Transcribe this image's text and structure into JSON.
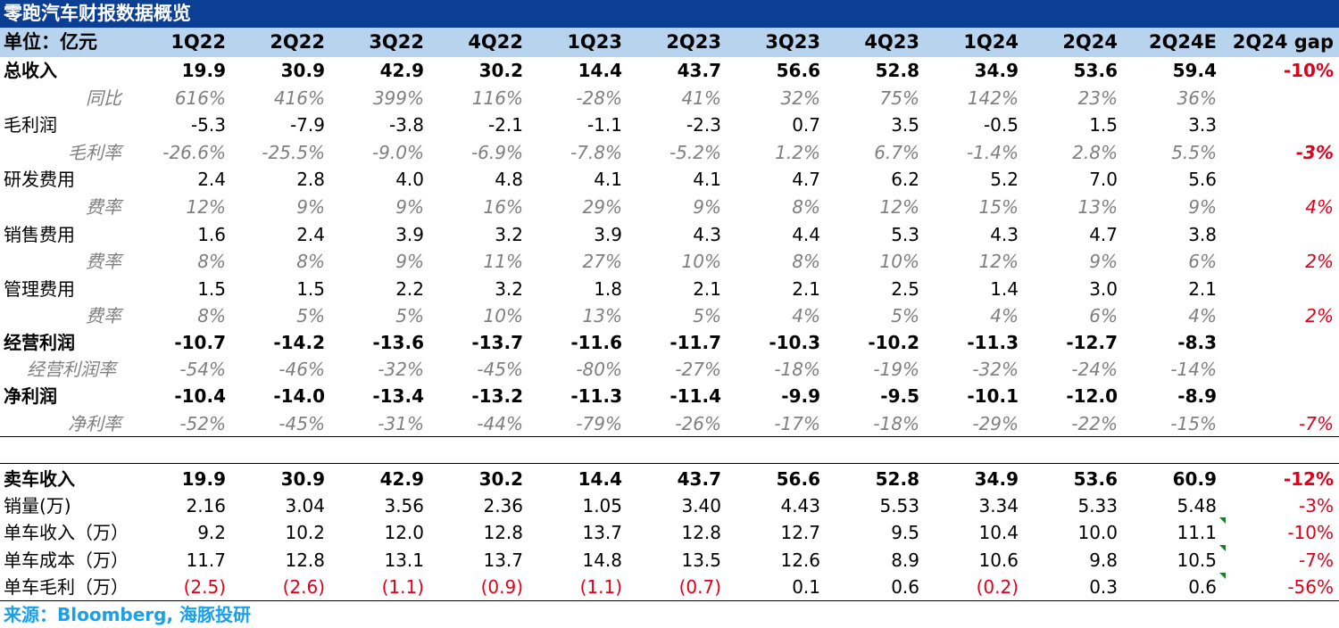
{
  "title": "零跑汽车财报数据概览",
  "header": {
    "unit": "单位：亿元",
    "columns": [
      "1Q22",
      "2Q22",
      "3Q22",
      "4Q22",
      "1Q23",
      "2Q23",
      "3Q23",
      "4Q23",
      "1Q24",
      "2Q24",
      "2Q24E",
      "2Q24 gap"
    ]
  },
  "rows": [
    {
      "label": "总收入",
      "values": [
        "19.9",
        "30.9",
        "42.9",
        "30.2",
        "14.4",
        "43.7",
        "56.6",
        "52.8",
        "34.9",
        "53.6",
        "59.4"
      ],
      "gap": "-10%"
    },
    {
      "label": "同比",
      "values": [
        "616%",
        "416%",
        "399%",
        "116%",
        "-28%",
        "41%",
        "32%",
        "75%",
        "142%",
        "23%",
        "36%"
      ],
      "gap": ""
    },
    {
      "label": "毛利润",
      "values": [
        "-5.3",
        "-7.9",
        "-3.8",
        "-2.1",
        "-1.1",
        "-2.3",
        "0.7",
        "3.5",
        "-0.5",
        "1.5",
        "3.3"
      ],
      "gap": ""
    },
    {
      "label": "毛利率",
      "values": [
        "-26.6%",
        "-25.5%",
        "-9.0%",
        "-6.9%",
        "-7.8%",
        "-5.2%",
        "1.2%",
        "6.7%",
        "-1.4%",
        "2.8%",
        "5.5%"
      ],
      "gap": "-3%"
    },
    {
      "label": "研发费用",
      "values": [
        "2.4",
        "2.8",
        "4.0",
        "4.8",
        "4.1",
        "4.1",
        "4.7",
        "6.2",
        "5.2",
        "7.0",
        "5.6"
      ],
      "gap": ""
    },
    {
      "label": "费率",
      "values": [
        "12%",
        "9%",
        "9%",
        "16%",
        "29%",
        "9%",
        "8%",
        "12%",
        "15%",
        "13%",
        "9%"
      ],
      "gap": "4%"
    },
    {
      "label": "销售费用",
      "values": [
        "1.6",
        "2.4",
        "3.9",
        "3.2",
        "3.9",
        "4.3",
        "4.4",
        "5.3",
        "4.3",
        "4.7",
        "3.8"
      ],
      "gap": ""
    },
    {
      "label": "费率",
      "values": [
        "8%",
        "8%",
        "9%",
        "11%",
        "27%",
        "10%",
        "8%",
        "10%",
        "12%",
        "9%",
        "6%"
      ],
      "gap": "2%"
    },
    {
      "label": "管理费用",
      "values": [
        "1.5",
        "1.5",
        "2.2",
        "3.2",
        "1.8",
        "2.1",
        "2.1",
        "2.5",
        "1.4",
        "3.0",
        "2.1"
      ],
      "gap": ""
    },
    {
      "label": "费率",
      "values": [
        "8%",
        "5%",
        "5%",
        "10%",
        "13%",
        "5%",
        "4%",
        "5%",
        "4%",
        "6%",
        "4%"
      ],
      "gap": "2%"
    },
    {
      "label": "经营利润",
      "values": [
        "-10.7",
        "-14.2",
        "-13.6",
        "-13.7",
        "-11.6",
        "-11.7",
        "-10.3",
        "-10.2",
        "-11.3",
        "-12.7",
        "-8.3"
      ],
      "gap": ""
    },
    {
      "label": "经营利润率",
      "values": [
        "-54%",
        "-46%",
        "-32%",
        "-45%",
        "-80%",
        "-27%",
        "-18%",
        "-19%",
        "-32%",
        "-24%",
        "-14%"
      ],
      "gap": ""
    },
    {
      "label": "净利润",
      "values": [
        "-10.4",
        "-14.0",
        "-13.4",
        "-13.2",
        "-11.3",
        "-11.4",
        "-9.9",
        "-9.5",
        "-10.1",
        "-12.0",
        "-8.9"
      ],
      "gap": ""
    },
    {
      "label": "净利率",
      "values": [
        "-52%",
        "-45%",
        "-31%",
        "-44%",
        "-79%",
        "-26%",
        "-17%",
        "-18%",
        "-29%",
        "-22%",
        "-15%"
      ],
      "gap": "-7%"
    },
    {
      "label": "卖车收入",
      "values": [
        "19.9",
        "30.9",
        "42.9",
        "30.2",
        "14.4",
        "43.7",
        "56.6",
        "52.8",
        "34.9",
        "53.6",
        "60.9"
      ],
      "gap": "-12%"
    },
    {
      "label": "销量(万)",
      "values": [
        "2.16",
        "3.04",
        "3.56",
        "2.36",
        "1.05",
        "3.40",
        "4.43",
        "5.53",
        "3.34",
        "5.33",
        "5.48"
      ],
      "gap": "-3%"
    },
    {
      "label": "单车收入（万）",
      "values": [
        "9.2",
        "10.2",
        "12.0",
        "12.8",
        "13.7",
        "12.8",
        "12.7",
        "9.5",
        "10.4",
        "10.0",
        "11.1"
      ],
      "gap": "-10%"
    },
    {
      "label": "单车成本（万）",
      "values": [
        "11.7",
        "12.8",
        "13.1",
        "13.7",
        "14.8",
        "13.5",
        "12.6",
        "8.9",
        "10.6",
        "9.8",
        "10.5"
      ],
      "gap": "-7%"
    },
    {
      "label": "单车毛利（万）",
      "values": [
        "(2.5)",
        "(2.6)",
        "(1.1)",
        "(0.9)",
        "(1.1)",
        "(0.7)",
        "0.1",
        "0.6",
        "(0.2)",
        "0.3",
        "0.6"
      ],
      "gap": "-56%"
    }
  ],
  "source": "来源：Bloomberg, 海豚投研",
  "colors": {
    "title_bg": "#0a3f95",
    "header_bg": "#b8d3ee",
    "negative": "#e0001b",
    "source": "#1aa0e8",
    "muted": "#7f7f7f"
  }
}
